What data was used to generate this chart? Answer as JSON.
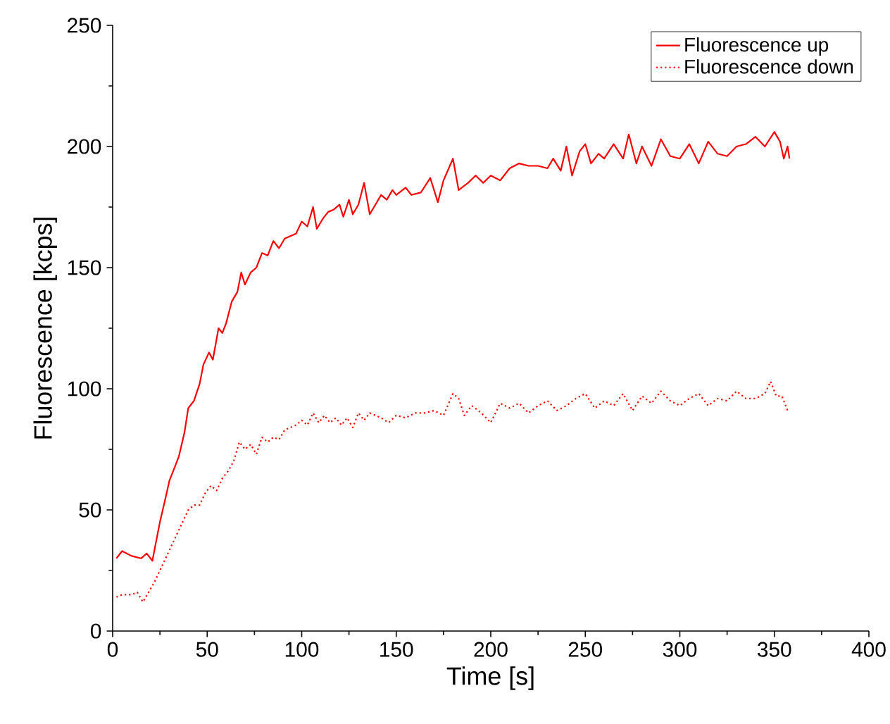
{
  "chart_data": {
    "type": "line",
    "xlabel": "Time [s]",
    "ylabel": "Fluorescence [kcps]",
    "xlim": [
      0,
      400
    ],
    "xticks": [
      0,
      50,
      100,
      150,
      200,
      250,
      300,
      350,
      400
    ],
    "ylim": [
      0,
      250
    ],
    "yticks": [
      0,
      50,
      100,
      150,
      200,
      250
    ],
    "grid": false,
    "legend": "top right",
    "marker": "none",
    "series": [
      {
        "name": "Fluorescence up",
        "color": "#ff0000",
        "line_style": "solid",
        "x": [
          2,
          5,
          10,
          15,
          18,
          21,
          25,
          28,
          30,
          35,
          38,
          40,
          43,
          46,
          48,
          51,
          53,
          56,
          58,
          60,
          63,
          66,
          68,
          70,
          73,
          76,
          79,
          82,
          85,
          88,
          91,
          94,
          97,
          100,
          103,
          106,
          108,
          111,
          114,
          117,
          120,
          122,
          125,
          127,
          130,
          133,
          136,
          139,
          142,
          145,
          148,
          150,
          155,
          158,
          163,
          168,
          172,
          175,
          180,
          183,
          188,
          192,
          196,
          200,
          205,
          210,
          215,
          220,
          225,
          230,
          233,
          237,
          240,
          243,
          247,
          250,
          253,
          257,
          260,
          265,
          270,
          273,
          277,
          280,
          285,
          290,
          295,
          300,
          305,
          310,
          315,
          320,
          325,
          330,
          335,
          340,
          345,
          350,
          353,
          355,
          357,
          358
        ],
        "values": [
          30,
          33,
          31,
          30,
          32,
          29,
          45,
          55,
          62,
          72,
          82,
          92,
          95,
          102,
          110,
          115,
          112,
          125,
          123,
          127,
          136,
          140,
          148,
          143,
          148,
          150,
          156,
          155,
          161,
          158,
          162,
          163,
          164,
          169,
          167,
          175,
          166,
          170,
          173,
          174,
          176,
          171,
          178,
          172,
          176,
          185,
          172,
          176,
          180,
          178,
          182,
          180,
          183,
          180,
          181,
          187,
          177,
          186,
          195,
          182,
          185,
          188,
          185,
          188,
          186,
          191,
          193,
          192,
          192,
          191,
          195,
          190,
          200,
          188,
          198,
          201,
          193,
          197,
          195,
          201,
          195,
          205,
          193,
          200,
          192,
          203,
          196,
          195,
          201,
          193,
          202,
          197,
          196,
          200,
          201,
          204,
          200,
          206,
          202,
          195,
          200,
          195
        ]
      },
      {
        "name": "Fluorescence down",
        "color": "#ff0000",
        "line_style": "dotted",
        "x": [
          2,
          5,
          10,
          13,
          16,
          19,
          22,
          25,
          28,
          31,
          34,
          37,
          40,
          43,
          46,
          49,
          52,
          55,
          58,
          61,
          64,
          67,
          70,
          73,
          76,
          79,
          82,
          85,
          88,
          91,
          94,
          97,
          100,
          103,
          106,
          109,
          112,
          115,
          118,
          121,
          124,
          127,
          130,
          133,
          136,
          139,
          142,
          146,
          150,
          155,
          160,
          165,
          170,
          175,
          180,
          183,
          186,
          190,
          195,
          200,
          205,
          210,
          215,
          220,
          225,
          230,
          235,
          240,
          245,
          250,
          255,
          260,
          265,
          270,
          275,
          280,
          285,
          290,
          295,
          300,
          305,
          310,
          315,
          320,
          325,
          330,
          335,
          340,
          345,
          348,
          351,
          354,
          357
        ],
        "values": [
          14,
          15,
          15,
          16,
          12,
          16,
          20,
          25,
          30,
          35,
          40,
          45,
          50,
          52,
          52,
          57,
          60,
          58,
          63,
          66,
          70,
          78,
          75,
          77,
          73,
          80,
          78,
          80,
          79,
          83,
          84,
          85,
          87,
          85,
          90,
          86,
          89,
          86,
          88,
          85,
          88,
          84,
          90,
          87,
          90,
          89,
          88,
          86,
          89,
          88,
          90,
          90,
          91,
          89,
          98,
          96,
          89,
          93,
          90,
          86,
          94,
          92,
          94,
          90,
          93,
          95,
          91,
          93,
          96,
          98,
          92,
          95,
          93,
          98,
          91,
          97,
          94,
          99,
          95,
          93,
          96,
          98,
          93,
          96,
          95,
          99,
          96,
          96,
          98,
          103,
          97,
          97,
          91
        ]
      }
    ]
  }
}
